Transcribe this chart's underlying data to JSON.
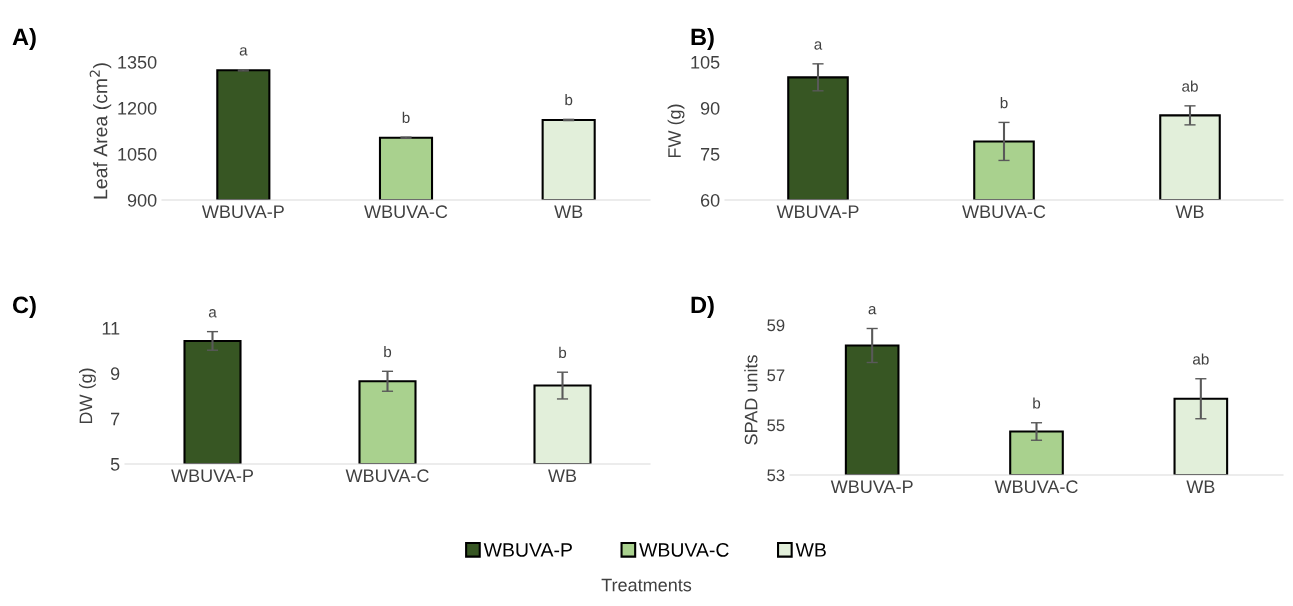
{
  "chart_data": [
    {
      "type": "bar",
      "title": "A)",
      "ylabel": "Leaf Area (cm$^{2}$)",
      "categories": [
        "WBUVA-P",
        "WBUVA-C",
        "WB"
      ],
      "values": [
        1323,
        1103,
        1161
      ],
      "errors": [
        2,
        2,
        2
      ],
      "colors": [
        "#375623",
        "#a9d18e",
        "#e2efda"
      ],
      "ylim": [
        900,
        1350
      ],
      "yticks": [
        900,
        1050,
        1200,
        1350
      ],
      "annotations": [
        "a",
        "b",
        "b"
      ]
    },
    {
      "type": "bar",
      "title": "B)",
      "ylabel": "FW (g)",
      "categories": [
        "WBUVA-P",
        "WBUVA-C",
        "WB"
      ],
      "values": [
        100,
        79.1,
        87.6
      ],
      "errors": [
        4.4,
        6.2,
        3.1
      ],
      "colors": [
        "#375623",
        "#a9d18e",
        "#e2efda"
      ],
      "ylim": [
        60,
        105
      ],
      "yticks": [
        60,
        75,
        90,
        105
      ],
      "annotations": [
        "a",
        "b",
        "ab"
      ]
    },
    {
      "type": "bar",
      "title": "C)",
      "ylabel": "DW (g)",
      "categories": [
        "WBUVA-P",
        "WBUVA-C",
        "WB"
      ],
      "values": [
        10.43,
        8.65,
        8.46
      ],
      "errors": [
        0.41,
        0.44,
        0.59
      ],
      "colors": [
        "#375623",
        "#a9d18e",
        "#e2efda"
      ],
      "ylim": [
        5,
        11
      ],
      "yticks": [
        5,
        7,
        9,
        11
      ],
      "annotations": [
        "a",
        "b",
        "b"
      ]
    },
    {
      "type": "bar",
      "stacked": true,
      "title": "D)",
      "ylabel": "SPAD units",
      "xlabel": "Treatments",
      "legend": "bottom",
      "categories": [
        "WBUVA-P",
        "WBUVA-C",
        "WB"
      ],
      "series": [
        {
          "name": "WBUVA-P",
          "color": "#375623",
          "values": [
            58.18,
            null,
            null
          ],
          "errors": [
            0.68,
            null,
            null
          ]
        },
        {
          "name": "WBUVA-C",
          "color": "#a9d18e",
          "values": [
            null,
            54.74,
            null
          ],
          "errors": [
            null,
            0.35,
            null
          ]
        },
        {
          "name": "WB",
          "color": "#e2efda",
          "values": [
            null,
            null,
            56.05
          ],
          "errors": [
            null,
            null,
            0.8
          ]
        }
      ],
      "ylim": [
        53,
        59
      ],
      "yticks": [
        53,
        55,
        57,
        59
      ],
      "annotations": [
        "a",
        "b",
        "ab"
      ]
    }
  ]
}
